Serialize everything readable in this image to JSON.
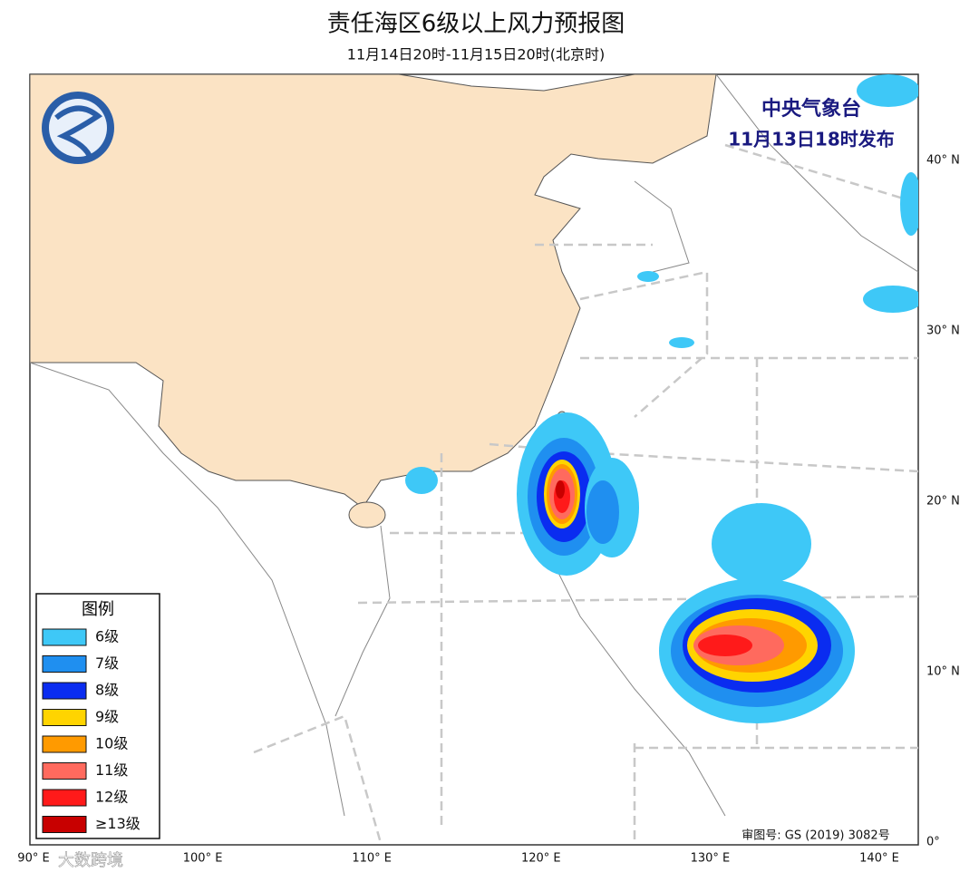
{
  "header": {
    "title": "责任海区6级以上风力预报图",
    "subtitle": "11月14日20时-11月15日20时(北京时)"
  },
  "issuer": {
    "name": "中央气象台",
    "time": "11月13日18时发布"
  },
  "lat_labels": [
    "40° N",
    "30° N",
    "20° N",
    "10° N",
    "0°"
  ],
  "lon_labels": [
    "90° E",
    "100° E",
    "110° E",
    "120° E",
    "130° E",
    "140° E"
  ],
  "legend": {
    "title": "图例",
    "items": [
      {
        "label": "6级",
        "color": "#3ec8f7"
      },
      {
        "label": "7级",
        "color": "#1f8ff0"
      },
      {
        "label": "8级",
        "color": "#0a2cf0"
      },
      {
        "label": "9级",
        "color": "#ffd400"
      },
      {
        "label": "10级",
        "color": "#ff9a00"
      },
      {
        "label": "11级",
        "color": "#ff6a5e"
      },
      {
        "label": "12级",
        "color": "#ff1a1a"
      },
      {
        "label": "≥13级",
        "color": "#c80000"
      }
    ]
  },
  "approval": "审图号: GS (2019) 3082号",
  "watermark": "大数跨境"
}
